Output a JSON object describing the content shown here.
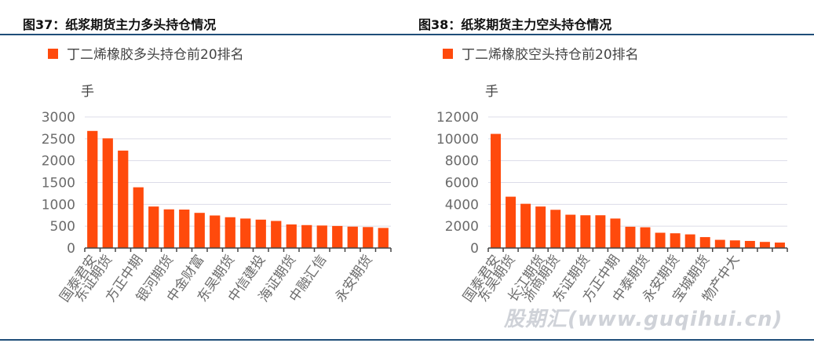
{
  "panels": [
    {
      "title": "图37：纸浆期货主力多头持仓情况"
    },
    {
      "title": "图38：纸浆期货主力空头持仓情况"
    }
  ],
  "watermark": "股期汇(www.guqihui.cn)",
  "chart_data": [
    {
      "type": "bar",
      "legend": "丁二烯橡胶多头持仓前20排名",
      "unit": "手",
      "color": "#ff4a0c",
      "ylim": [
        0,
        3000
      ],
      "yticks": [
        0,
        500,
        1000,
        1500,
        2000,
        2500,
        3000
      ],
      "categories": [
        "国泰君安",
        "东证期货",
        "",
        "方正中期",
        "",
        "银河期货",
        "",
        "中金财富",
        "",
        "东吴期货",
        "",
        "中信建投",
        "",
        "海证期货",
        "",
        "中融汇信",
        "",
        "",
        "永安期货",
        ""
      ],
      "values": [
        2680,
        2510,
        2230,
        1390,
        950,
        885,
        880,
        805,
        745,
        705,
        675,
        650,
        620,
        540,
        525,
        515,
        505,
        490,
        480,
        460
      ],
      "grid": true,
      "legend_position": "top-left"
    },
    {
      "type": "bar",
      "legend": "丁二烯橡胶空头持仓前20排名",
      "unit": "手",
      "color": "#ff4a0c",
      "ylim": [
        0,
        12000
      ],
      "yticks": [
        0,
        2000,
        4000,
        6000,
        8000,
        10000,
        12000
      ],
      "categories": [
        "国泰君安",
        "东吴期货",
        "",
        "长江期货",
        "浙商期货",
        "",
        "东证期货",
        "",
        "方正中期",
        "",
        "中泰期货",
        "",
        "永安期货",
        "",
        "宝城期货",
        "",
        "物产中大",
        "",
        "",
        ""
      ],
      "values": [
        10450,
        4700,
        4050,
        3800,
        3500,
        3050,
        3000,
        3000,
        2700,
        1950,
        1900,
        1400,
        1350,
        1250,
        1000,
        750,
        700,
        650,
        560,
        500
      ],
      "grid": true,
      "legend_position": "top-left"
    }
  ]
}
